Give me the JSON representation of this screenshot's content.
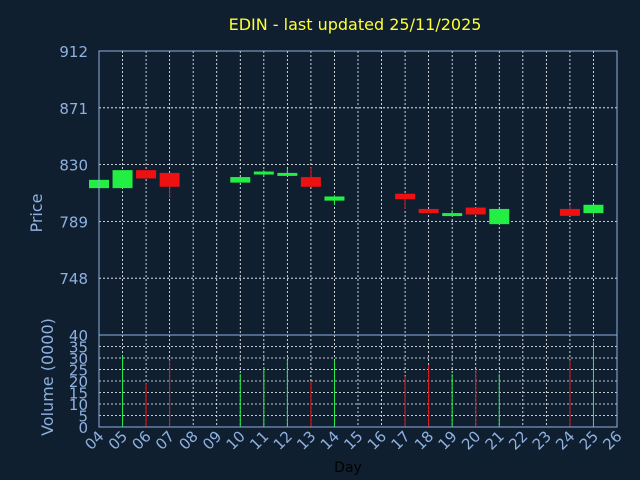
{
  "colors": {
    "background": "#0f1f30",
    "frame": "#8fb1e0",
    "grid": "#ffffff",
    "title": "#ffff33",
    "axis_text": "#8fb1e0",
    "xlabel": "#000000",
    "up": "#22ee44",
    "down": "#ee1111"
  },
  "chart_data": [
    {
      "type": "candlestick",
      "title": "EDIN - last updated 25/11/2025",
      "ylabel": "Price",
      "xlabel": "Day",
      "x_ticks": [
        "04",
        "05",
        "06",
        "07",
        "08",
        "09",
        "10",
        "11",
        "12",
        "13",
        "14",
        "15",
        "16",
        "17",
        "18",
        "19",
        "20",
        "21",
        "22",
        "23",
        "24",
        "25",
        "26"
      ],
      "y_ticks": [
        "912",
        "871",
        "830",
        "789",
        "748"
      ],
      "ylim": [
        707,
        912
      ],
      "grid": true,
      "candles": [
        {
          "day": "04",
          "open": 813,
          "close": 819,
          "high": 819,
          "low": 813
        },
        {
          "day": "05",
          "open": 813,
          "close": 826,
          "high": 826,
          "low": 813
        },
        {
          "day": "06",
          "open": 826,
          "close": 820,
          "high": 826,
          "low": 820
        },
        {
          "day": "07",
          "open": 824,
          "close": 814,
          "high": 824,
          "low": 806
        },
        {
          "day": "10",
          "open": 817,
          "close": 821,
          "high": 821,
          "low": 817
        },
        {
          "day": "11",
          "open": 823,
          "close": 825,
          "high": 826,
          "low": 822
        },
        {
          "day": "12",
          "open": 824,
          "close": 824,
          "high": 827,
          "low": 822
        },
        {
          "day": "13",
          "open": 821,
          "close": 814,
          "high": 828,
          "low": 814
        },
        {
          "day": "14",
          "open": 804,
          "close": 807,
          "high": 808,
          "low": 801
        },
        {
          "day": "17",
          "open": 809,
          "close": 805,
          "high": 809,
          "low": 798
        },
        {
          "day": "18",
          "open": 798,
          "close": 795,
          "high": 798,
          "low": 795
        },
        {
          "day": "19",
          "open": 793,
          "close": 795,
          "high": 797,
          "low": 793
        },
        {
          "day": "20",
          "open": 799,
          "close": 794,
          "high": 799,
          "low": 794
        },
        {
          "day": "21",
          "open": 787,
          "close": 798,
          "high": 798,
          "low": 787
        },
        {
          "day": "24",
          "open": 798,
          "close": 793,
          "high": 801,
          "low": 793
        },
        {
          "day": "25",
          "open": 795,
          "close": 801,
          "high": 801,
          "low": 792
        }
      ]
    },
    {
      "type": "bar",
      "ylabel": "Volume (0000)",
      "xlabel": "Day",
      "x_ticks": [
        "04",
        "05",
        "06",
        "07",
        "08",
        "09",
        "10",
        "11",
        "12",
        "13",
        "14",
        "15",
        "16",
        "17",
        "18",
        "19",
        "20",
        "21",
        "22",
        "23",
        "24",
        "25",
        "26"
      ],
      "y_ticks": [
        "40",
        "35",
        "30",
        "25",
        "20",
        "15",
        "10",
        "5",
        "0"
      ],
      "ylim": [
        0,
        40
      ],
      "grid": true,
      "bars": [
        {
          "day": "05",
          "value": 31,
          "direction": "up"
        },
        {
          "day": "06",
          "value": 19,
          "direction": "down"
        },
        {
          "day": "07",
          "value": 29,
          "direction": "down"
        },
        {
          "day": "10",
          "value": 23,
          "direction": "up"
        },
        {
          "day": "11",
          "value": 26,
          "direction": "up"
        },
        {
          "day": "12",
          "value": 29,
          "direction": "up"
        },
        {
          "day": "13",
          "value": 20,
          "direction": "down"
        },
        {
          "day": "14",
          "value": 29,
          "direction": "up"
        },
        {
          "day": "17",
          "value": 22,
          "direction": "down"
        },
        {
          "day": "18",
          "value": 27,
          "direction": "down"
        },
        {
          "day": "19",
          "value": 23,
          "direction": "up"
        },
        {
          "day": "20",
          "value": 25,
          "direction": "down"
        },
        {
          "day": "21",
          "value": 23,
          "direction": "up"
        },
        {
          "day": "24",
          "value": 29,
          "direction": "down"
        },
        {
          "day": "25",
          "value": 37,
          "direction": "up"
        }
      ]
    }
  ]
}
